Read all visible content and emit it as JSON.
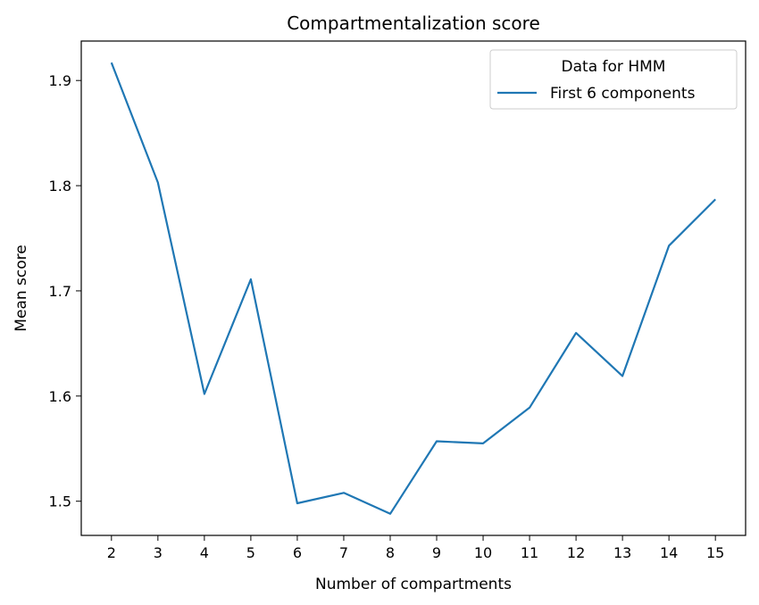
{
  "chart_data": {
    "type": "line",
    "title": "Compartmentalization score",
    "xlabel": "Number of compartments",
    "ylabel": "Mean score",
    "x": [
      2,
      3,
      4,
      5,
      6,
      7,
      8,
      9,
      10,
      11,
      12,
      13,
      14,
      15
    ],
    "xticks": [
      "2",
      "3",
      "4",
      "5",
      "6",
      "7",
      "8",
      "9",
      "10",
      "11",
      "12",
      "13",
      "14",
      "15"
    ],
    "yticks": [
      "1.5",
      "1.6",
      "1.7",
      "1.8",
      "1.9"
    ],
    "xlim": [
      1.35,
      15.65
    ],
    "ylim": [
      1.4675,
      1.9375
    ],
    "legend": {
      "title": "Data for HMM",
      "placement": "upper right"
    },
    "series": [
      {
        "name": "First 6 components",
        "color": "#1f77b4",
        "values": [
          1.917,
          1.803,
          1.602,
          1.711,
          1.498,
          1.508,
          1.488,
          1.557,
          1.555,
          1.589,
          1.66,
          1.619,
          1.743,
          1.787
        ]
      }
    ],
    "grid": false
  }
}
